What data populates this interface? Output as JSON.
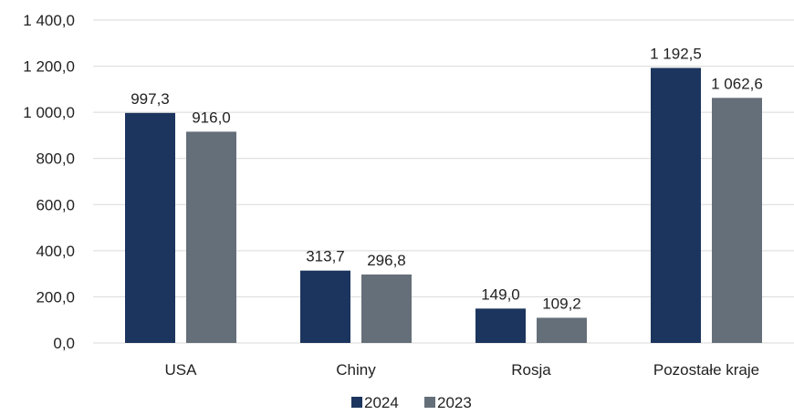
{
  "chart_data": {
    "type": "bar",
    "categories": [
      "USA",
      "Chiny",
      "Rosja",
      "Pozostałe kraje"
    ],
    "series": [
      {
        "name": "2024",
        "color": "#1c355e",
        "values": [
          997.3,
          313.7,
          149.0,
          1192.5
        ],
        "labels": [
          "997,3",
          "313,7",
          "149,0",
          "1 192,5"
        ]
      },
      {
        "name": "2023",
        "color": "#656f79",
        "values": [
          916.0,
          296.8,
          109.2,
          1062.6
        ],
        "labels": [
          "916,0",
          "296,8",
          "109,2",
          "1 062,6"
        ]
      }
    ],
    "ylim": [
      0,
      1400
    ],
    "yticks": [
      0,
      200,
      400,
      600,
      800,
      1000,
      1200,
      1400
    ],
    "ytick_labels": [
      "0,0",
      "200,0",
      "400,0",
      "600,0",
      "800,0",
      "1 000,0",
      "1 200,0",
      "1 400,0"
    ],
    "grid": "horizontal",
    "legend_position": "bottom"
  }
}
